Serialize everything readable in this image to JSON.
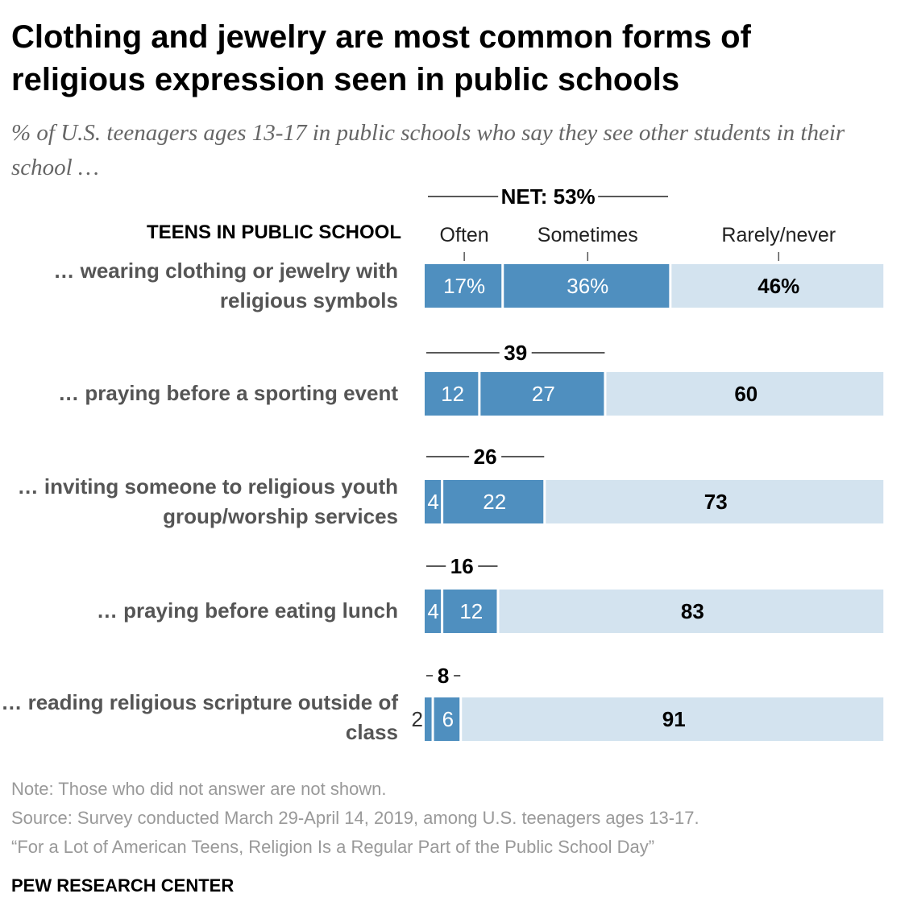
{
  "title": "Clothing and jewelry are most common forms of religious expression seen in public schools",
  "subtitle": "% of U.S. teenagers ages 13-17 in public schools who say they see other students in their school …",
  "column_header": "TEENS IN PUBLIC SCHOOL",
  "chart_data": {
    "type": "bar",
    "stacked": true,
    "orientation": "horizontal",
    "categories": [
      "… wearing clothing or jewelry with religious symbols",
      "… praying before a sporting event",
      "… inviting someone to religious youth group/worship services",
      "… praying before eating lunch",
      "… reading religious scripture outside of class"
    ],
    "series": [
      {
        "name": "Often",
        "values": [
          17,
          12,
          4,
          4,
          2
        ],
        "color": "#4f8fbf"
      },
      {
        "name": "Sometimes",
        "values": [
          36,
          27,
          22,
          12,
          6
        ],
        "color": "#4f8fbf"
      },
      {
        "name": "Rarely/never",
        "values": [
          46,
          60,
          73,
          83,
          91
        ],
        "color": "#d3e3ef"
      }
    ],
    "net_values": [
      53,
      39,
      26,
      16,
      8
    ],
    "net_label_prefix": "NET: ",
    "value_labels": [
      [
        "17%",
        "36%",
        "46%"
      ],
      [
        "12",
        "27",
        "60"
      ],
      [
        "4",
        "22",
        "73"
      ],
      [
        "4",
        "12",
        "83"
      ],
      [
        "2",
        "6",
        "91"
      ]
    ],
    "xlim": [
      0,
      100
    ],
    "legend_placement": "top"
  },
  "notes": {
    "note": "Note: Those who did not answer are not shown.",
    "source": "Source: Survey conducted March 29-April 14, 2019, among U.S. teenagers ages 13-17.",
    "report": "“For a Lot of American Teens, Religion Is a Regular Part of the Public School Day”"
  },
  "credit": "PEW RESEARCH CENTER"
}
